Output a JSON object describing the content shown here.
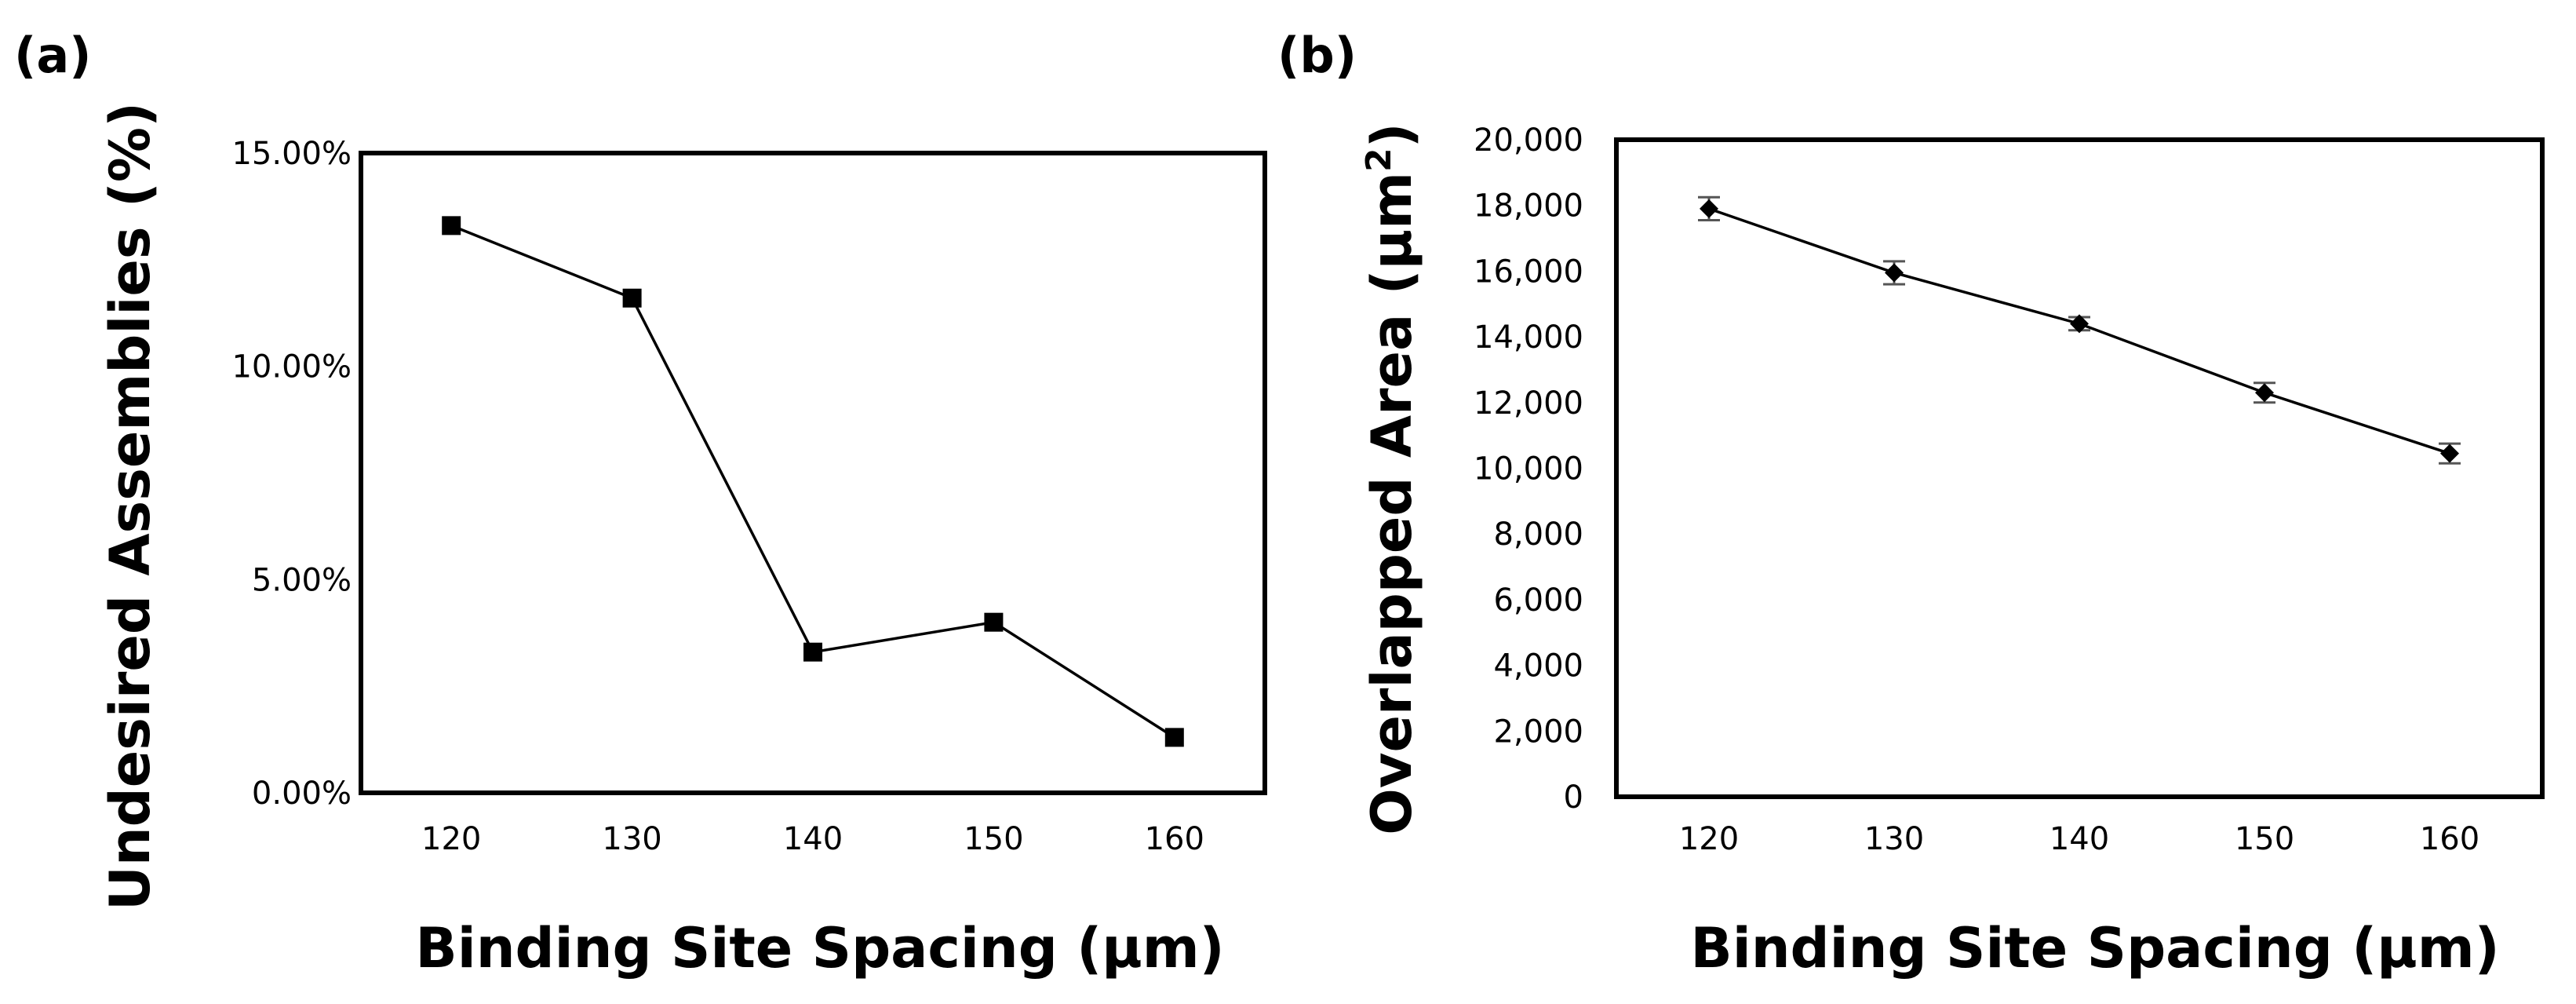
{
  "panels": {
    "a": {
      "label": "(a)"
    },
    "b": {
      "label": "(b)"
    }
  },
  "chart_data": [
    {
      "id": "a",
      "type": "line",
      "title": "",
      "panel_label": "(a)",
      "xlabel": "Binding Site Spacing (µm)",
      "ylabel": "Undesired Assemblies (%)",
      "x": [
        120,
        130,
        140,
        150,
        160
      ],
      "x_tick_labels": [
        "120",
        "130",
        "140",
        "150",
        "160"
      ],
      "xlim": [
        115,
        165
      ],
      "ylim": [
        0,
        15
      ],
      "y_ticks": [
        0,
        5,
        10,
        15
      ],
      "y_tick_labels": [
        "0.00%",
        "5.00%",
        "10.00%",
        "15.00%"
      ],
      "marker": "square",
      "series": [
        {
          "name": "Undesired Assemblies",
          "values": [
            13.3,
            11.6,
            3.3,
            4.0,
            1.3
          ],
          "color": "#000000"
        }
      ],
      "grid": false
    },
    {
      "id": "b",
      "type": "line",
      "title": "",
      "panel_label": "(b)",
      "xlabel": "Binding Site Spacing (µm)",
      "ylabel_main": "Overlapped Area (µm",
      "ylabel_sup": "2",
      "ylabel_close": ")",
      "x": [
        120,
        130,
        140,
        150,
        160
      ],
      "x_tick_labels": [
        "120",
        "130",
        "140",
        "150",
        "160"
      ],
      "xlim": [
        115,
        165
      ],
      "ylim": [
        0,
        20000
      ],
      "y_ticks": [
        0,
        2000,
        4000,
        6000,
        8000,
        10000,
        12000,
        14000,
        16000,
        18000,
        20000
      ],
      "y_tick_labels": [
        "0",
        "2,000",
        "4,000",
        "6,000",
        "8,000",
        "10,000",
        "12,000",
        "14,000",
        "16,000",
        "18,000",
        "20,000"
      ],
      "marker": "diamond",
      "series": [
        {
          "name": "Overlapped Area",
          "values": [
            17900,
            15950,
            14400,
            12300,
            10450
          ],
          "errors": [
            350,
            350,
            200,
            300,
            300
          ],
          "color": "#000000"
        }
      ],
      "grid": false
    }
  ]
}
